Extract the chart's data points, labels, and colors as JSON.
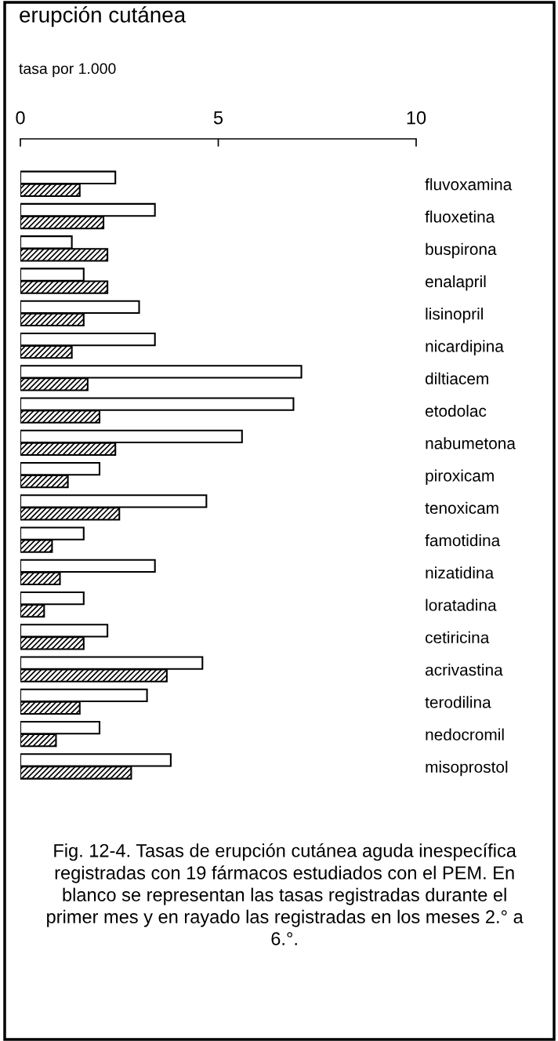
{
  "chart_data": {
    "type": "bar",
    "orientation": "horizontal",
    "title": "erupción cutánea",
    "xlabel": "tasa por 1.000",
    "categories": [
      "fluvoxamina",
      "fluoxetina",
      "buspirona",
      "enalapril",
      "lisinopril",
      "nicardipina",
      "diltiacem",
      "etodolac",
      "nabumetona",
      "piroxicam",
      "tenoxicam",
      "famotidina",
      "nizatidina",
      "loratadina",
      "cetiricina",
      "acrivastina",
      "terodilina",
      "nedocromil",
      "misoprostol"
    ],
    "series": [
      {
        "color": "#ffffff",
        "values": [
          2.4,
          3.4,
          1.3,
          1.6,
          3.0,
          3.4,
          7.1,
          6.9,
          5.6,
          2.0,
          4.7,
          1.6,
          3.4,
          1.6,
          2.2,
          4.6,
          3.2,
          2.0,
          3.8
        ]
      },
      {
        "color": "#000000",
        "values": [
          1.5,
          2.1,
          2.2,
          2.2,
          1.6,
          1.3,
          1.7,
          2.0,
          2.4,
          1.2,
          2.5,
          0.8,
          1.0,
          0.6,
          1.6,
          3.7,
          1.5,
          0.9,
          2.8
        ]
      }
    ],
    "xlim": [
      0,
      10
    ],
    "xticks": [
      0,
      5,
      10
    ],
    "grid": false,
    "legend": false,
    "annotations": [
      "Fig. 12-4. Tasas de erupción cutánea aguda inespecífica registradas con 19 fármacos estudiados con el PEM. En blanco se representan las tasas registradas durante el primer mes y en rayado las registradas en los meses 2.° a 6.°."
    ]
  }
}
